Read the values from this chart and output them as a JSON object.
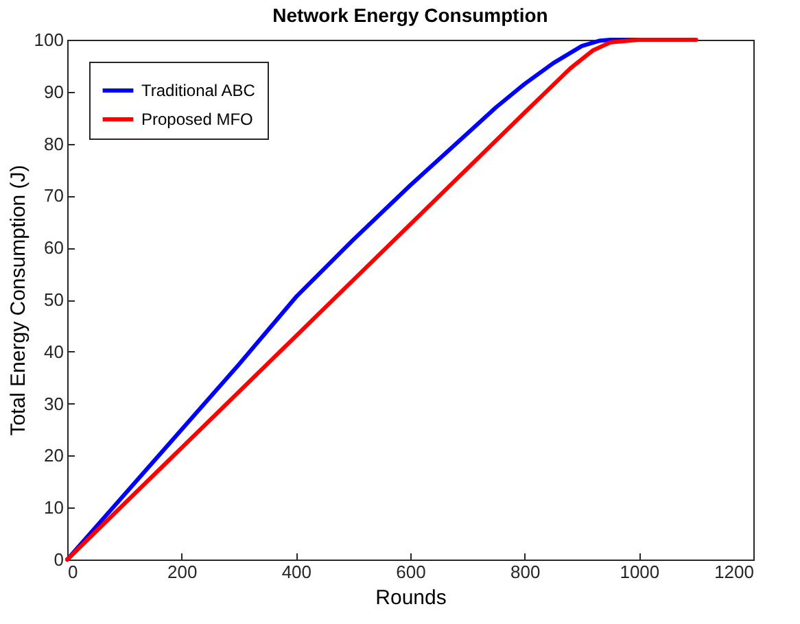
{
  "chart_data": {
    "type": "line",
    "title": "Network Energy Consumption",
    "xlabel": "Rounds",
    "ylabel": "Total Energy Consumption (J)",
    "xlim": [
      0,
      1200
    ],
    "xticks": [
      0,
      200,
      400,
      600,
      800,
      1000,
      1200
    ],
    "ylim": [
      0,
      100
    ],
    "yticks": [
      0,
      10,
      20,
      30,
      40,
      50,
      60,
      70,
      80,
      90,
      100
    ],
    "grid": false,
    "legend": "top left",
    "line_style": "solid",
    "series": [
      {
        "name": "Traditional ABC",
        "color": "#0000ff",
        "x": [
          0,
          100,
          200,
          300,
          350,
          400,
          500,
          600,
          700,
          750,
          800,
          850,
          900,
          930,
          950,
          1000
        ],
        "values": [
          0,
          12.5,
          25,
          37.5,
          44,
          50.5,
          61.5,
          72,
          82,
          87,
          91.5,
          95.5,
          98.8,
          99.8,
          100,
          100
        ]
      },
      {
        "name": "Proposed MFO",
        "color": "#ff0000",
        "x": [
          0,
          200,
          400,
          600,
          800,
          880,
          920,
          950,
          1000,
          1100
        ],
        "values": [
          0,
          21.5,
          43,
          64.5,
          86,
          94.5,
          98,
          99.5,
          100,
          100
        ]
      }
    ]
  }
}
